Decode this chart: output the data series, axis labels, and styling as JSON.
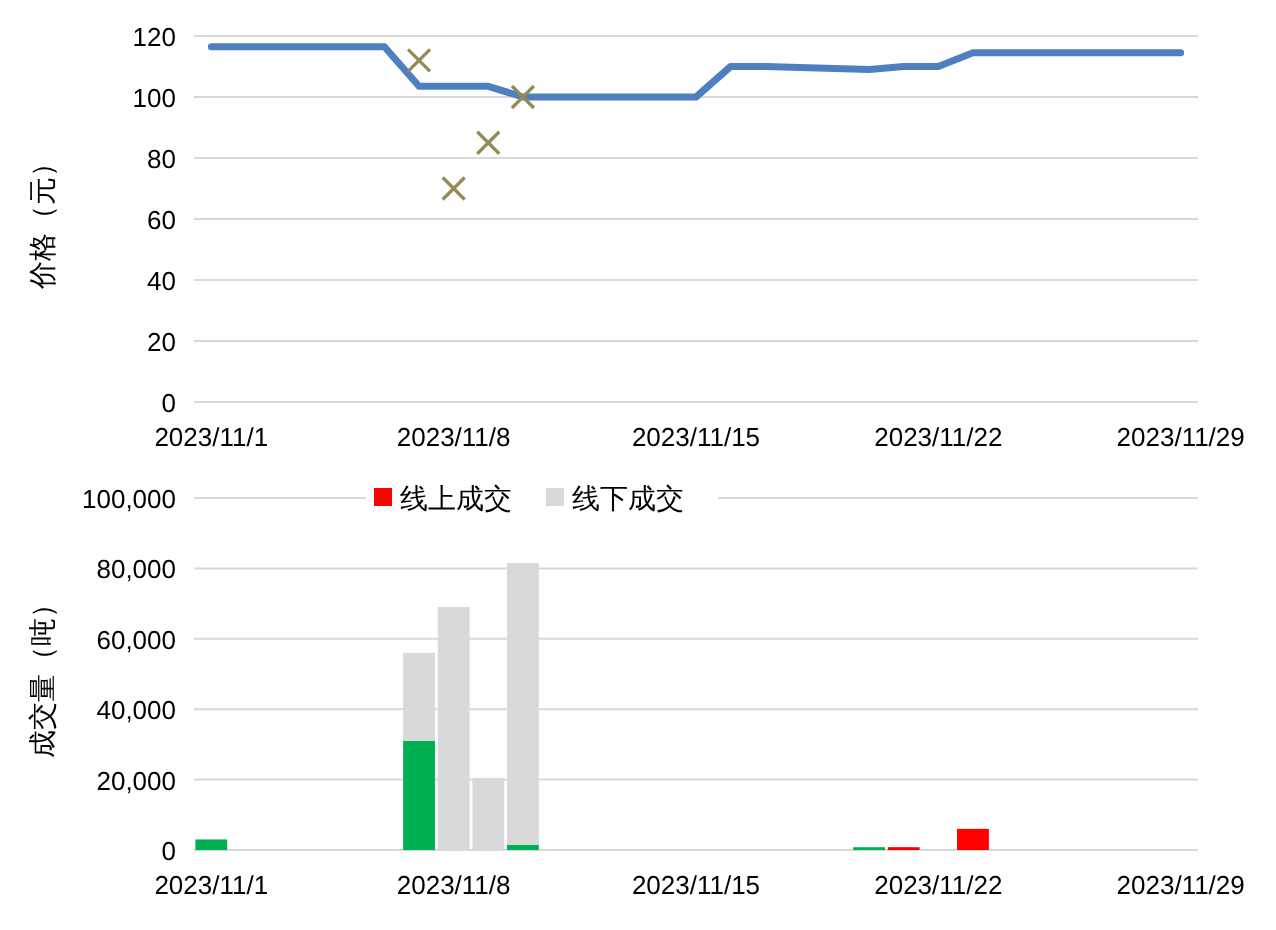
{
  "chart_data": [
    {
      "type": "line",
      "ylabel": "价格（元）",
      "xlim": [
        "2023-10-31T12:00",
        "2023-11-29T12:00"
      ],
      "ylim": [
        0,
        120
      ],
      "yticks": [
        0,
        20,
        40,
        60,
        80,
        100,
        120
      ],
      "xticks": [
        {
          "value": "2023-11-01",
          "label": "2023/11/1"
        },
        {
          "value": "2023-11-08",
          "label": "2023/11/8"
        },
        {
          "value": "2023-11-15",
          "label": "2023/11/15"
        },
        {
          "value": "2023-11-22",
          "label": "2023/11/22"
        },
        {
          "value": "2023-11-29",
          "label": "2023/11/29"
        }
      ],
      "grid": "y",
      "series": [
        {
          "color": "#4e7fc0",
          "marker": "none",
          "x": [
            "2023-11-01",
            "2023-11-02",
            "2023-11-03",
            "2023-11-06",
            "2023-11-07",
            "2023-11-08",
            "2023-11-09",
            "2023-11-10",
            "2023-11-13",
            "2023-11-14",
            "2023-11-15",
            "2023-11-16",
            "2023-11-17",
            "2023-11-20",
            "2023-11-21",
            "2023-11-22",
            "2023-11-23",
            "2023-11-24",
            "2023-11-27",
            "2023-11-28",
            "2023-11-29"
          ],
          "values": [
            116.5,
            116.5,
            116.5,
            116.5,
            103.5,
            103.5,
            103.5,
            100,
            100,
            100,
            100,
            110,
            110,
            109,
            110,
            110,
            114.5,
            114.5,
            114.5,
            114.5,
            114.5
          ]
        },
        {
          "type": "scatter",
          "color": "#948a54",
          "marker": "cross",
          "x": [
            "2023-11-07",
            "2023-11-08",
            "2023-11-09",
            "2023-11-10"
          ],
          "values": [
            112,
            70,
            85,
            100
          ]
        }
      ]
    },
    {
      "type": "bar",
      "stacked": true,
      "ylabel": "成交量（吨）",
      "xlim": [
        "2023-10-31T12:00",
        "2023-11-29T12:00"
      ],
      "ylim": [
        0,
        100000
      ],
      "yticks": [
        0,
        {
          "value": 20000,
          "label": "20,000"
        },
        {
          "value": 40000,
          "label": "40,000"
        },
        {
          "value": 60000,
          "label": "60,000"
        },
        {
          "value": 80000,
          "label": "80,000"
        },
        {
          "value": 100000,
          "label": "100,000"
        }
      ],
      "xticks": [
        {
          "value": "2023-11-01",
          "label": "2023/11/1"
        },
        {
          "value": "2023-11-08",
          "label": "2023/11/8"
        },
        {
          "value": "2023-11-15",
          "label": "2023/11/15"
        },
        {
          "value": "2023-11-22",
          "label": "2023/11/22"
        },
        {
          "value": "2023-11-29",
          "label": "2023/11/29"
        }
      ],
      "grid": "y",
      "legend": "top",
      "x": [
        "2023-11-01",
        "2023-11-07",
        "2023-11-08",
        "2023-11-09",
        "2023-11-10",
        "2023-11-20",
        "2023-11-21",
        "2023-11-23"
      ],
      "series": [
        {
          "color": "#00b050",
          "values": [
            3000,
            31000,
            null,
            null,
            1500,
            800,
            null,
            null
          ]
        },
        {
          "name": "线上成交",
          "color": "#ff0000",
          "values": [
            null,
            null,
            null,
            null,
            null,
            null,
            800,
            6000
          ]
        },
        {
          "name": "线下成交",
          "color": "#d9d9d9",
          "values": [
            null,
            25000,
            69000,
            20500,
            80000,
            null,
            null,
            null
          ]
        }
      ]
    }
  ]
}
